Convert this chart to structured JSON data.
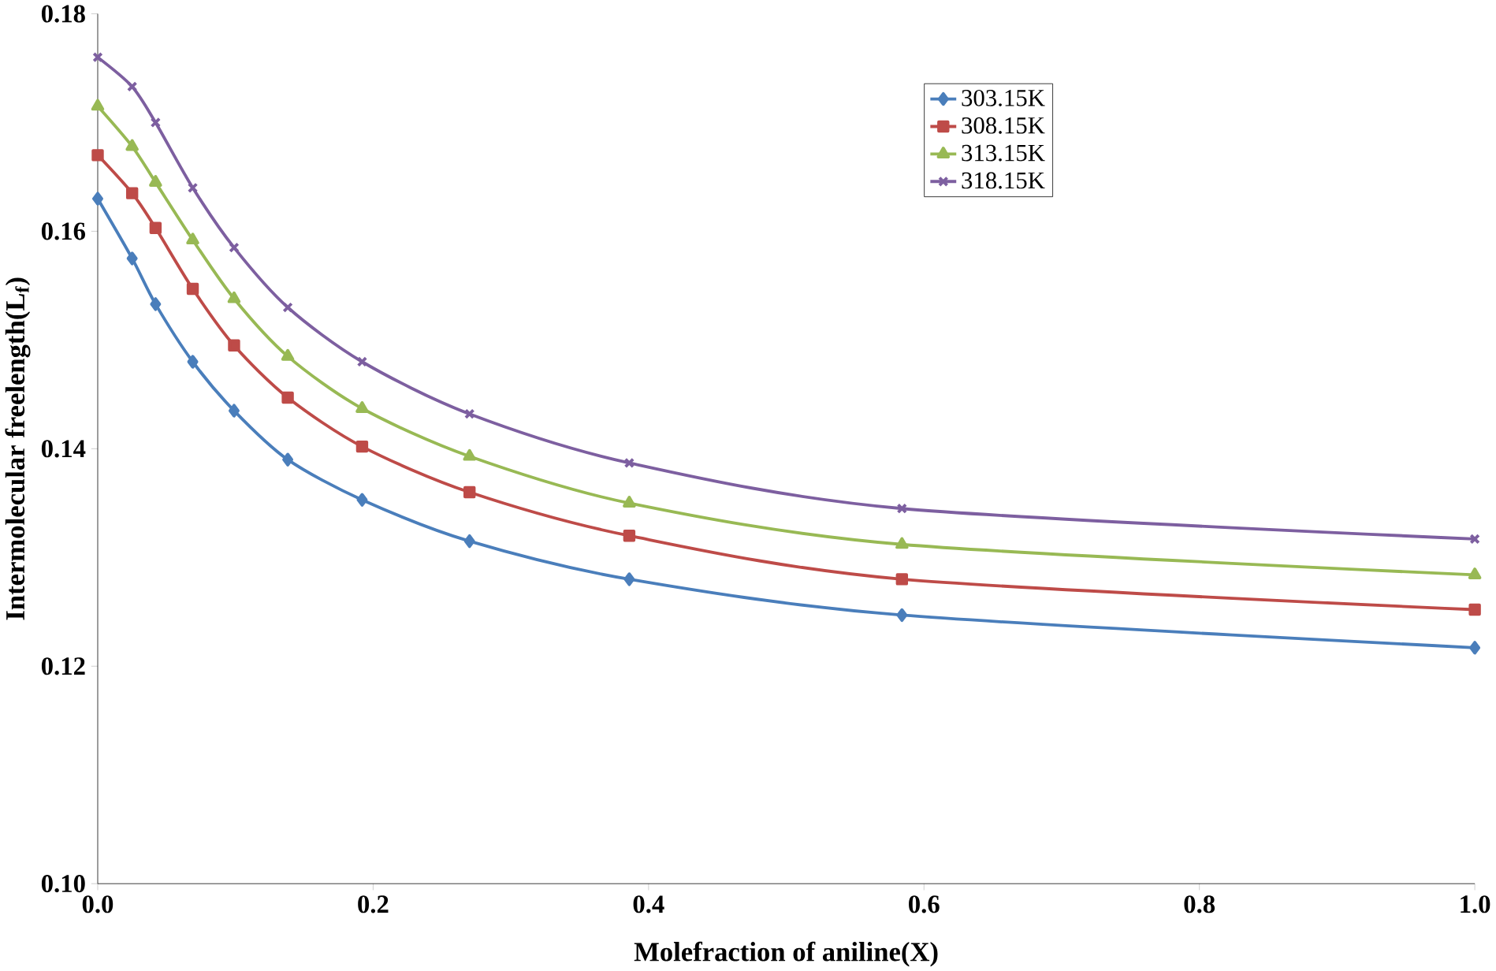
{
  "chart_data": {
    "type": "line",
    "xlabel": "Molefraction of aniline(X)",
    "ylabel": "Intermolecular freelength(L$_{f}$)",
    "x": [
      0,
      0.025,
      0.042,
      0.069,
      0.099,
      0.138,
      0.192,
      0.27,
      0.386,
      0.584,
      1.0
    ],
    "series": [
      {
        "name": "303.15K",
        "color": "#4a7ebb",
        "marker": "diamond",
        "values": [
          0.163,
          0.1575,
          0.1533,
          0.148,
          0.1435,
          0.139,
          0.1353,
          0.1315,
          0.128,
          0.1247,
          0.1217
        ]
      },
      {
        "name": "308.15K",
        "color": "#be4b48",
        "marker": "square",
        "values": [
          0.167,
          0.1635,
          0.1603,
          0.1547,
          0.1495,
          0.1447,
          0.1402,
          0.136,
          0.132,
          0.128,
          0.1252
        ]
      },
      {
        "name": "313.15K",
        "color": "#98b954",
        "marker": "triangle",
        "values": [
          0.1715,
          0.1678,
          0.1645,
          0.1592,
          0.1538,
          0.1485,
          0.1437,
          0.1393,
          0.135,
          0.1312,
          0.1284
        ]
      },
      {
        "name": "318.15K",
        "color": "#7d5fa0",
        "marker": "cross",
        "values": [
          0.176,
          0.1733,
          0.17,
          0.164,
          0.1585,
          0.153,
          0.148,
          0.1432,
          0.1387,
          0.1345,
          0.1317
        ]
      }
    ],
    "xlim": [
      0,
      1.0
    ],
    "xticks": [
      {
        "value": 0,
        "label": "0.0"
      },
      0.2,
      0.4,
      0.6,
      0.8,
      {
        "value": 1.0,
        "label": "1.0"
      }
    ],
    "ylim": [
      0.1,
      0.18
    ],
    "yticks": [
      {
        "value": 0.1,
        "label": "0.10"
      },
      0.12,
      0.14,
      0.16,
      0.18
    ],
    "grid": false,
    "legend": "top right",
    "line_style": "solid"
  }
}
